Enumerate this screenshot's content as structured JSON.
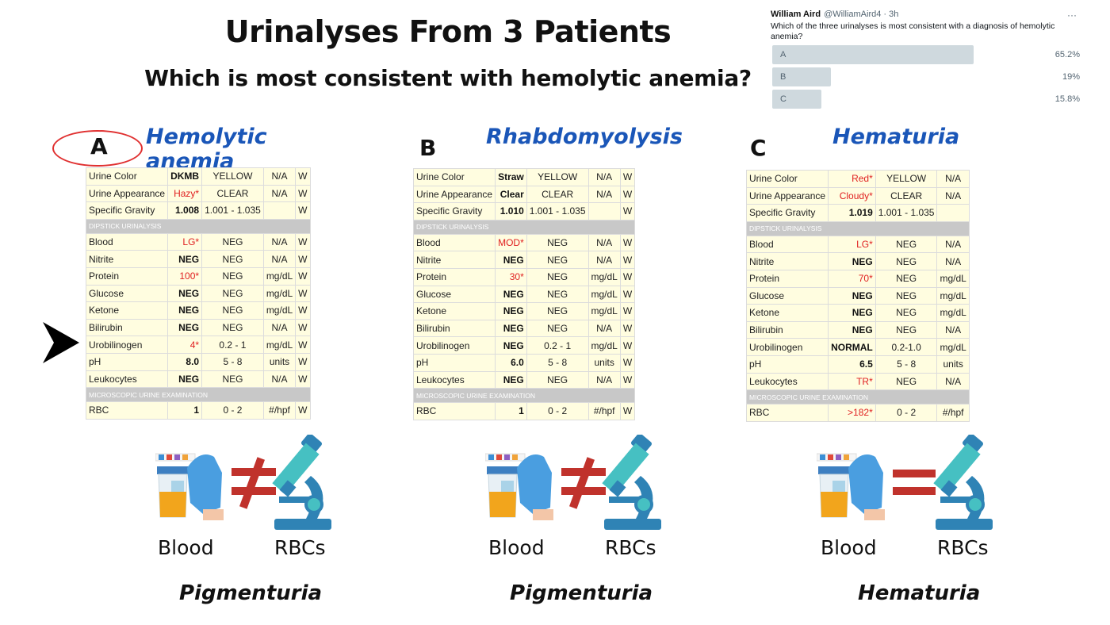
{
  "title": "Urinalyses From 3 Patients",
  "subtitle": "Which is most consistent with hemolytic anemia?",
  "poll": {
    "name": "William Aird",
    "handle": "@WilliamAird4 · 3h",
    "question": "Which of the three urinalyses is most consistent with a diagnosis of hemolytic anemia?",
    "options": [
      {
        "label": "A",
        "pct": "65.2%",
        "fraction": 0.652
      },
      {
        "label": "B",
        "pct": "19%",
        "fraction": 0.19
      },
      {
        "label": "C",
        "pct": "15.8%",
        "fraction": 0.158
      }
    ]
  },
  "panels": [
    {
      "letter": "A",
      "diagnosis": "Hemolytic anemia",
      "verdict": "Pigmenturia",
      "relation": "not-equal",
      "blood_label": "Blood",
      "rbc_label": "RBCs",
      "rows": [
        {
          "name": "Urine Color",
          "val": "DKMB",
          "abn": false,
          "ref": "YELLOW",
          "unit": "N/A",
          "flag": "W"
        },
        {
          "name": "Urine Appearance",
          "val": "Hazy*",
          "abn": true,
          "ref": "CLEAR",
          "unit": "N/A",
          "flag": "W"
        },
        {
          "name": "Specific Gravity",
          "val": "1.008",
          "abn": false,
          "ref": "1.001 - 1.035",
          "unit": "",
          "flag": "W"
        },
        {
          "section": "DIPSTICK URINALYSIS"
        },
        {
          "name": "Blood",
          "val": "LG*",
          "abn": true,
          "ref": "NEG",
          "unit": "N/A",
          "flag": "W"
        },
        {
          "name": "Nitrite",
          "val": "NEG",
          "abn": false,
          "ref": "NEG",
          "unit": "N/A",
          "flag": "W"
        },
        {
          "name": "Protein",
          "val": "100*",
          "abn": true,
          "ref": "NEG",
          "unit": "mg/dL",
          "flag": "W"
        },
        {
          "name": "Glucose",
          "val": "NEG",
          "abn": false,
          "ref": "NEG",
          "unit": "mg/dL",
          "flag": "W"
        },
        {
          "name": "Ketone",
          "val": "NEG",
          "abn": false,
          "ref": "NEG",
          "unit": "mg/dL",
          "flag": "W"
        },
        {
          "name": "Bilirubin",
          "val": "NEG",
          "abn": false,
          "ref": "NEG",
          "unit": "N/A",
          "flag": "W"
        },
        {
          "name": "Urobilinogen",
          "val": "4*",
          "abn": true,
          "ref": "0.2 - 1",
          "unit": "mg/dL",
          "flag": "W"
        },
        {
          "name": "pH",
          "val": "8.0",
          "abn": false,
          "ref": "5 - 8",
          "unit": "units",
          "flag": "W"
        },
        {
          "name": "Leukocytes",
          "val": "NEG",
          "abn": false,
          "ref": "NEG",
          "unit": "N/A",
          "flag": "W"
        },
        {
          "section": "MICROSCOPIC URINE EXAMINATION"
        },
        {
          "name": "RBC",
          "val": "1",
          "abn": false,
          "ref": "0 - 2",
          "unit": "#/hpf",
          "flag": "W"
        }
      ]
    },
    {
      "letter": "B",
      "diagnosis": "Rhabdomyolysis",
      "verdict": "Pigmenturia",
      "relation": "not-equal",
      "blood_label": "Blood",
      "rbc_label": "RBCs",
      "rows": [
        {
          "name": "Urine Color",
          "val": "Straw",
          "abn": false,
          "ref": "YELLOW",
          "unit": "N/A",
          "flag": "W"
        },
        {
          "name": "Urine Appearance",
          "val": "Clear",
          "abn": false,
          "ref": "CLEAR",
          "unit": "N/A",
          "flag": "W"
        },
        {
          "name": "Specific Gravity",
          "val": "1.010",
          "abn": false,
          "ref": "1.001 - 1.035",
          "unit": "",
          "flag": "W"
        },
        {
          "section": "DIPSTICK URINALYSIS"
        },
        {
          "name": "Blood",
          "val": "MOD*",
          "abn": true,
          "ref": "NEG",
          "unit": "N/A",
          "flag": "W"
        },
        {
          "name": "Nitrite",
          "val": "NEG",
          "abn": false,
          "ref": "NEG",
          "unit": "N/A",
          "flag": "W"
        },
        {
          "name": "Protein",
          "val": "30*",
          "abn": true,
          "ref": "NEG",
          "unit": "mg/dL",
          "flag": "W"
        },
        {
          "name": "Glucose",
          "val": "NEG",
          "abn": false,
          "ref": "NEG",
          "unit": "mg/dL",
          "flag": "W"
        },
        {
          "name": "Ketone",
          "val": "NEG",
          "abn": false,
          "ref": "NEG",
          "unit": "mg/dL",
          "flag": "W"
        },
        {
          "name": "Bilirubin",
          "val": "NEG",
          "abn": false,
          "ref": "NEG",
          "unit": "N/A",
          "flag": "W"
        },
        {
          "name": "Urobilinogen",
          "val": "NEG",
          "abn": false,
          "ref": "0.2 - 1",
          "unit": "mg/dL",
          "flag": "W"
        },
        {
          "name": "pH",
          "val": "6.0",
          "abn": false,
          "ref": "5 - 8",
          "unit": "units",
          "flag": "W"
        },
        {
          "name": "Leukocytes",
          "val": "NEG",
          "abn": false,
          "ref": "NEG",
          "unit": "N/A",
          "flag": "W"
        },
        {
          "section": "MICROSCOPIC URINE EXAMINATION"
        },
        {
          "name": "RBC",
          "val": "1",
          "abn": false,
          "ref": "0 - 2",
          "unit": "#/hpf",
          "flag": "W"
        }
      ]
    },
    {
      "letter": "C",
      "diagnosis": "Hematuria",
      "verdict": "Hematuria",
      "relation": "equal",
      "blood_label": "Blood",
      "rbc_label": "RBCs",
      "rows": [
        {
          "name": "Urine Color",
          "val": "Red*",
          "abn": true,
          "ref": "YELLOW",
          "unit": "N/A"
        },
        {
          "name": "Urine Appearance",
          "val": "Cloudy*",
          "abn": true,
          "ref": "CLEAR",
          "unit": "N/A"
        },
        {
          "name": "Specific Gravity",
          "val": "1.019",
          "abn": false,
          "ref": "1.001 - 1.035",
          "unit": ""
        },
        {
          "section": "DIPSTICK URINALYSIS"
        },
        {
          "name": "Blood",
          "val": "LG*",
          "abn": true,
          "ref": "NEG",
          "unit": "N/A"
        },
        {
          "name": "Nitrite",
          "val": "NEG",
          "abn": false,
          "ref": "NEG",
          "unit": "N/A"
        },
        {
          "name": "Protein",
          "val": "70*",
          "abn": true,
          "ref": "NEG",
          "unit": "mg/dL"
        },
        {
          "name": "Glucose",
          "val": "NEG",
          "abn": false,
          "ref": "NEG",
          "unit": "mg/dL"
        },
        {
          "name": "Ketone",
          "val": "NEG",
          "abn": false,
          "ref": "NEG",
          "unit": "mg/dL"
        },
        {
          "name": "Bilirubin",
          "val": "NEG",
          "abn": false,
          "ref": "NEG",
          "unit": "N/A"
        },
        {
          "name": "Urobilinogen",
          "val": "NORMAL",
          "abn": false,
          "ref": "0.2-1.0",
          "unit": "mg/dL"
        },
        {
          "name": "pH",
          "val": "6.5",
          "abn": false,
          "ref": "5 - 8",
          "unit": "units"
        },
        {
          "name": "Leukocytes",
          "val": "TR*",
          "abn": true,
          "ref": "NEG",
          "unit": "N/A"
        },
        {
          "section": "MICROSCOPIC URINE EXAMINATION"
        },
        {
          "name": "RBC",
          "val": ">182*",
          "abn": true,
          "ref": "0 - 2",
          "unit": "#/hpf"
        }
      ]
    }
  ],
  "icons": {
    "pointer": "pointer-arrow-icon",
    "urine": "urine-test-icon",
    "microscope": "microscope-icon",
    "not_equal": "not-equal-icon",
    "equal": "equal-icon"
  },
  "colors": {
    "diagnosis": "#1a56b8",
    "abnormal": "#e02020",
    "table_bg": "#fffde0",
    "section_bg": "#c8c8c8",
    "relation": "#c0322c"
  }
}
